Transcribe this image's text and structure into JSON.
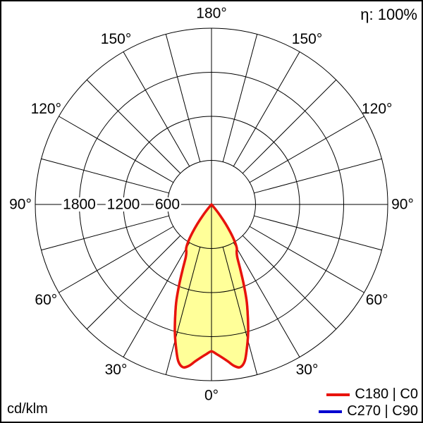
{
  "header": {
    "efficiency": "η: 100%"
  },
  "footer": {
    "unit": "cd/klm"
  },
  "legend": {
    "position": "bottom-right",
    "items": [
      {
        "label": "C180 | C0",
        "color": "#e8130c"
      },
      {
        "label": "C270 | C90",
        "color": "#0000d0"
      }
    ]
  },
  "chart_data": {
    "type": "line",
    "subtype": "polar-intensity-distribution",
    "title": "",
    "unit": "cd/klm",
    "efficiency_label": "η: 100%",
    "zero_direction": "down",
    "grid": true,
    "angle_axis": {
      "grid_step_deg": 15,
      "labels": [
        {
          "deg": 0,
          "text": "0°"
        },
        {
          "deg": 30,
          "text": "30°"
        },
        {
          "deg": 60,
          "text": "60°"
        },
        {
          "deg": 90,
          "text": "90°"
        },
        {
          "deg": 120,
          "text": "120°"
        },
        {
          "deg": 150,
          "text": "150°"
        },
        {
          "deg": 180,
          "text": "180°"
        }
      ],
      "mirrored_labels_deg": [
        30,
        60,
        90,
        120,
        150
      ]
    },
    "radial_axis": {
      "tick_values": [
        600,
        1200,
        1800
      ],
      "tick_labels": [
        "600",
        "1200",
        "1800"
      ],
      "max": 2400
    },
    "fill_color": "#ffff99",
    "series": [
      {
        "name": "C180 | C0",
        "color": "#e8130c",
        "angles_deg": [
          -41,
          -40,
          -38,
          -36,
          -34,
          -32,
          -30,
          -28,
          -26,
          -24,
          -22,
          -20,
          -18,
          -16,
          -14,
          -12,
          -10,
          -8,
          -6,
          -4,
          -2,
          0,
          2,
          4,
          6,
          8,
          10,
          12,
          14,
          16,
          18,
          20,
          22,
          24,
          26,
          28,
          30,
          32,
          34,
          36,
          38,
          40,
          41
        ],
        "values": [
          0,
          70,
          190,
          330,
          470,
          600,
          690,
          730,
          800,
          960,
          1170,
          1400,
          1600,
          1810,
          2000,
          2180,
          2250,
          2220,
          2150,
          2090,
          2040,
          2000,
          2040,
          2090,
          2150,
          2220,
          2250,
          2180,
          2000,
          1810,
          1600,
          1400,
          1170,
          960,
          800,
          730,
          690,
          600,
          470,
          330,
          190,
          70,
          0
        ]
      },
      {
        "name": "C270 | C90",
        "color": "#0000d0",
        "coincident_with_series_0": true,
        "angles_deg": [
          -41,
          -40,
          -38,
          -36,
          -34,
          -32,
          -30,
          -28,
          -26,
          -24,
          -22,
          -20,
          -18,
          -16,
          -14,
          -12,
          -10,
          -8,
          -6,
          -4,
          -2,
          0,
          2,
          4,
          6,
          8,
          10,
          12,
          14,
          16,
          18,
          20,
          22,
          24,
          26,
          28,
          30,
          32,
          34,
          36,
          38,
          40,
          41
        ],
        "values": [
          0,
          70,
          190,
          330,
          470,
          600,
          690,
          730,
          800,
          960,
          1170,
          1400,
          1600,
          1810,
          2000,
          2180,
          2250,
          2220,
          2150,
          2090,
          2040,
          2000,
          2040,
          2090,
          2150,
          2220,
          2250,
          2180,
          2000,
          1810,
          1600,
          1400,
          1170,
          960,
          800,
          730,
          690,
          600,
          470,
          330,
          190,
          70,
          0
        ]
      }
    ]
  }
}
